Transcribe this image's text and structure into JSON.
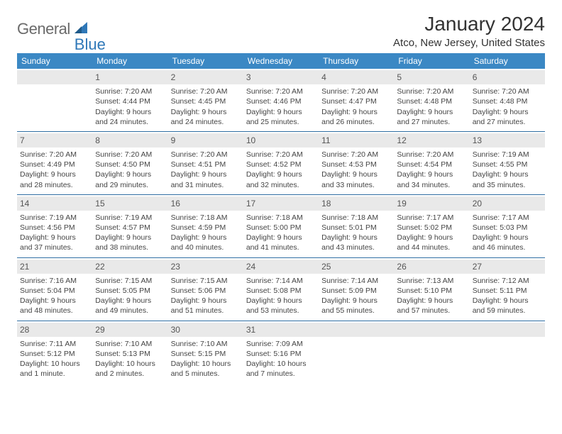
{
  "brand": {
    "text1": "General",
    "text2": "Blue"
  },
  "title": "January 2024",
  "location": "Atco, New Jersey, United States",
  "colors": {
    "header_bg": "#3b88c4",
    "daynum_bg": "#e9e9e9",
    "week_border": "#2f6ea3",
    "logo_gray": "#6a6a6a",
    "logo_blue": "#2f78b8"
  },
  "dow": [
    "Sunday",
    "Monday",
    "Tuesday",
    "Wednesday",
    "Thursday",
    "Friday",
    "Saturday"
  ],
  "weeks": [
    [
      {
        "n": "",
        "sr": "",
        "ss": "",
        "d1": "",
        "d2": ""
      },
      {
        "n": "1",
        "sr": "Sunrise: 7:20 AM",
        "ss": "Sunset: 4:44 PM",
        "d1": "Daylight: 9 hours",
        "d2": "and 24 minutes."
      },
      {
        "n": "2",
        "sr": "Sunrise: 7:20 AM",
        "ss": "Sunset: 4:45 PM",
        "d1": "Daylight: 9 hours",
        "d2": "and 24 minutes."
      },
      {
        "n": "3",
        "sr": "Sunrise: 7:20 AM",
        "ss": "Sunset: 4:46 PM",
        "d1": "Daylight: 9 hours",
        "d2": "and 25 minutes."
      },
      {
        "n": "4",
        "sr": "Sunrise: 7:20 AM",
        "ss": "Sunset: 4:47 PM",
        "d1": "Daylight: 9 hours",
        "d2": "and 26 minutes."
      },
      {
        "n": "5",
        "sr": "Sunrise: 7:20 AM",
        "ss": "Sunset: 4:48 PM",
        "d1": "Daylight: 9 hours",
        "d2": "and 27 minutes."
      },
      {
        "n": "6",
        "sr": "Sunrise: 7:20 AM",
        "ss": "Sunset: 4:48 PM",
        "d1": "Daylight: 9 hours",
        "d2": "and 27 minutes."
      }
    ],
    [
      {
        "n": "7",
        "sr": "Sunrise: 7:20 AM",
        "ss": "Sunset: 4:49 PM",
        "d1": "Daylight: 9 hours",
        "d2": "and 28 minutes."
      },
      {
        "n": "8",
        "sr": "Sunrise: 7:20 AM",
        "ss": "Sunset: 4:50 PM",
        "d1": "Daylight: 9 hours",
        "d2": "and 29 minutes."
      },
      {
        "n": "9",
        "sr": "Sunrise: 7:20 AM",
        "ss": "Sunset: 4:51 PM",
        "d1": "Daylight: 9 hours",
        "d2": "and 31 minutes."
      },
      {
        "n": "10",
        "sr": "Sunrise: 7:20 AM",
        "ss": "Sunset: 4:52 PM",
        "d1": "Daylight: 9 hours",
        "d2": "and 32 minutes."
      },
      {
        "n": "11",
        "sr": "Sunrise: 7:20 AM",
        "ss": "Sunset: 4:53 PM",
        "d1": "Daylight: 9 hours",
        "d2": "and 33 minutes."
      },
      {
        "n": "12",
        "sr": "Sunrise: 7:20 AM",
        "ss": "Sunset: 4:54 PM",
        "d1": "Daylight: 9 hours",
        "d2": "and 34 minutes."
      },
      {
        "n": "13",
        "sr": "Sunrise: 7:19 AM",
        "ss": "Sunset: 4:55 PM",
        "d1": "Daylight: 9 hours",
        "d2": "and 35 minutes."
      }
    ],
    [
      {
        "n": "14",
        "sr": "Sunrise: 7:19 AM",
        "ss": "Sunset: 4:56 PM",
        "d1": "Daylight: 9 hours",
        "d2": "and 37 minutes."
      },
      {
        "n": "15",
        "sr": "Sunrise: 7:19 AM",
        "ss": "Sunset: 4:57 PM",
        "d1": "Daylight: 9 hours",
        "d2": "and 38 minutes."
      },
      {
        "n": "16",
        "sr": "Sunrise: 7:18 AM",
        "ss": "Sunset: 4:59 PM",
        "d1": "Daylight: 9 hours",
        "d2": "and 40 minutes."
      },
      {
        "n": "17",
        "sr": "Sunrise: 7:18 AM",
        "ss": "Sunset: 5:00 PM",
        "d1": "Daylight: 9 hours",
        "d2": "and 41 minutes."
      },
      {
        "n": "18",
        "sr": "Sunrise: 7:18 AM",
        "ss": "Sunset: 5:01 PM",
        "d1": "Daylight: 9 hours",
        "d2": "and 43 minutes."
      },
      {
        "n": "19",
        "sr": "Sunrise: 7:17 AM",
        "ss": "Sunset: 5:02 PM",
        "d1": "Daylight: 9 hours",
        "d2": "and 44 minutes."
      },
      {
        "n": "20",
        "sr": "Sunrise: 7:17 AM",
        "ss": "Sunset: 5:03 PM",
        "d1": "Daylight: 9 hours",
        "d2": "and 46 minutes."
      }
    ],
    [
      {
        "n": "21",
        "sr": "Sunrise: 7:16 AM",
        "ss": "Sunset: 5:04 PM",
        "d1": "Daylight: 9 hours",
        "d2": "and 48 minutes."
      },
      {
        "n": "22",
        "sr": "Sunrise: 7:15 AM",
        "ss": "Sunset: 5:05 PM",
        "d1": "Daylight: 9 hours",
        "d2": "and 49 minutes."
      },
      {
        "n": "23",
        "sr": "Sunrise: 7:15 AM",
        "ss": "Sunset: 5:06 PM",
        "d1": "Daylight: 9 hours",
        "d2": "and 51 minutes."
      },
      {
        "n": "24",
        "sr": "Sunrise: 7:14 AM",
        "ss": "Sunset: 5:08 PM",
        "d1": "Daylight: 9 hours",
        "d2": "and 53 minutes."
      },
      {
        "n": "25",
        "sr": "Sunrise: 7:14 AM",
        "ss": "Sunset: 5:09 PM",
        "d1": "Daylight: 9 hours",
        "d2": "and 55 minutes."
      },
      {
        "n": "26",
        "sr": "Sunrise: 7:13 AM",
        "ss": "Sunset: 5:10 PM",
        "d1": "Daylight: 9 hours",
        "d2": "and 57 minutes."
      },
      {
        "n": "27",
        "sr": "Sunrise: 7:12 AM",
        "ss": "Sunset: 5:11 PM",
        "d1": "Daylight: 9 hours",
        "d2": "and 59 minutes."
      }
    ],
    [
      {
        "n": "28",
        "sr": "Sunrise: 7:11 AM",
        "ss": "Sunset: 5:12 PM",
        "d1": "Daylight: 10 hours",
        "d2": "and 1 minute."
      },
      {
        "n": "29",
        "sr": "Sunrise: 7:10 AM",
        "ss": "Sunset: 5:13 PM",
        "d1": "Daylight: 10 hours",
        "d2": "and 2 minutes."
      },
      {
        "n": "30",
        "sr": "Sunrise: 7:10 AM",
        "ss": "Sunset: 5:15 PM",
        "d1": "Daylight: 10 hours",
        "d2": "and 5 minutes."
      },
      {
        "n": "31",
        "sr": "Sunrise: 7:09 AM",
        "ss": "Sunset: 5:16 PM",
        "d1": "Daylight: 10 hours",
        "d2": "and 7 minutes."
      },
      {
        "n": "",
        "sr": "",
        "ss": "",
        "d1": "",
        "d2": ""
      },
      {
        "n": "",
        "sr": "",
        "ss": "",
        "d1": "",
        "d2": ""
      },
      {
        "n": "",
        "sr": "",
        "ss": "",
        "d1": "",
        "d2": ""
      }
    ]
  ]
}
